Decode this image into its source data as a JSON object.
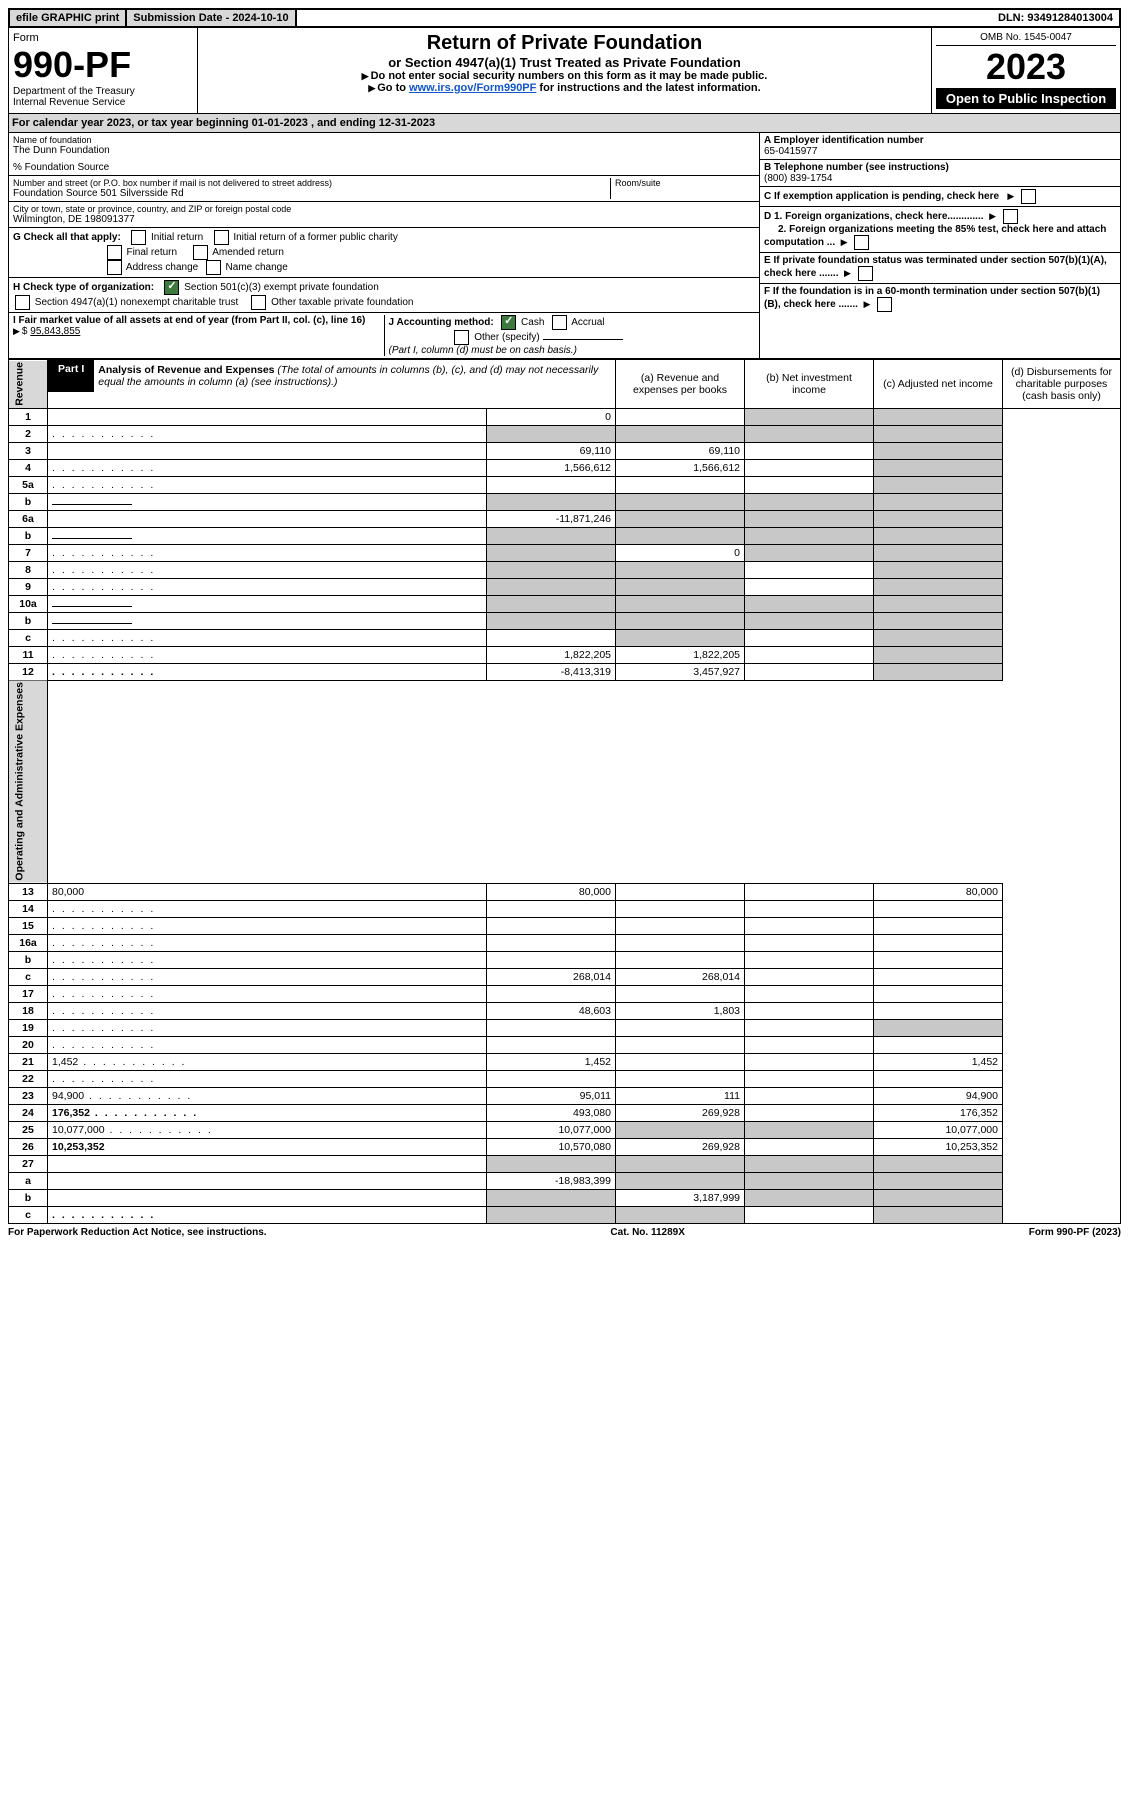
{
  "top": {
    "efile": "efile GRAPHIC print",
    "subdate_label": "Submission Date - 2024-10-10",
    "dln": "DLN: 93491284013004"
  },
  "header": {
    "form_label": "Form",
    "form_num": "990-PF",
    "dept": "Department of the Treasury",
    "irs": "Internal Revenue Service",
    "title": "Return of Private Foundation",
    "subtitle": "or Section 4947(a)(1) Trust Treated as Private Foundation",
    "note1": "Do not enter social security numbers on this form as it may be made public.",
    "note2_pre": "Go to ",
    "note2_link": "www.irs.gov/Form990PF",
    "note2_post": " for instructions and the latest information.",
    "omb": "OMB No. 1545-0047",
    "year": "2023",
    "open": "Open to Public Inspection"
  },
  "calyear": "For calendar year 2023, or tax year beginning 01-01-2023             , and ending 12-31-2023",
  "entity": {
    "name_label": "Name of foundation",
    "name": "The Dunn Foundation",
    "care_of": "% Foundation Source",
    "addr_label": "Number and street (or P.O. box number if mail is not delivered to street address)",
    "addr": "Foundation Source 501 Silversside Rd",
    "room_label": "Room/suite",
    "city_label": "City or town, state or province, country, and ZIP or foreign postal code",
    "city": "Wilmington, DE  198091377",
    "a_label": "A Employer identification number",
    "a_val": "65-0415977",
    "b_label": "B Telephone number (see instructions)",
    "b_val": "(800) 839-1754",
    "c_label": "C If exemption application is pending, check here",
    "d1": "D 1. Foreign organizations, check here.............",
    "d2": "2. Foreign organizations meeting the 85% test, check here and attach computation ...",
    "e_label": "E  If private foundation status was terminated under section 507(b)(1)(A), check here .......",
    "f_label": "F  If the foundation is in a 60-month termination under section 507(b)(1)(B), check here .......",
    "g_label": "G Check all that apply:",
    "g_initial": "Initial return",
    "g_initial_former": "Initial return of a former public charity",
    "g_final": "Final return",
    "g_amended": "Amended return",
    "g_address": "Address change",
    "g_name": "Name change",
    "h_label": "H Check type of organization:",
    "h_501c3": "Section 501(c)(3) exempt private foundation",
    "h_4947": "Section 4947(a)(1) nonexempt charitable trust",
    "h_other_tax": "Other taxable private foundation",
    "i_label": "I Fair market value of all assets at end of year (from Part II, col. (c), line 16)",
    "i_val": "95,843,855",
    "j_label": "J Accounting method:",
    "j_cash": "Cash",
    "j_accrual": "Accrual",
    "j_other": "Other (specify)",
    "j_note": "(Part I, column (d) must be on cash basis.)"
  },
  "part1": {
    "label": "Part I",
    "title": "Analysis of Revenue and Expenses",
    "title_note": "(The total of amounts in columns (b), (c), and (d) may not necessarily equal the amounts in column (a) (see instructions).)",
    "col_a": "(a)   Revenue and expenses per books",
    "col_b": "(b)   Net investment income",
    "col_c": "(c)   Adjusted net income",
    "col_d": "(d)   Disbursements for charitable purposes (cash basis only)"
  },
  "sides": {
    "revenue": "Revenue",
    "expenses": "Operating and Administrative Expenses"
  },
  "rows": [
    {
      "n": "1",
      "d": "",
      "a": "0",
      "b": "",
      "c": "",
      "shade": [
        "c",
        "d"
      ]
    },
    {
      "n": "2",
      "d": "",
      "a": "",
      "b": "",
      "c": "",
      "shade": [
        "a",
        "b",
        "c",
        "d"
      ],
      "dots": true
    },
    {
      "n": "3",
      "d": "",
      "a": "69,110",
      "b": "69,110",
      "c": "",
      "shade": [
        "d"
      ]
    },
    {
      "n": "4",
      "d": "",
      "a": "1,566,612",
      "b": "1,566,612",
      "c": "",
      "shade": [
        "d"
      ],
      "dots": true
    },
    {
      "n": "5a",
      "d": "",
      "a": "",
      "b": "",
      "c": "",
      "shade": [
        "d"
      ],
      "dots": true
    },
    {
      "n": "b",
      "d": "",
      "a": "",
      "b": "",
      "c": "",
      "shade": [
        "a",
        "b",
        "c",
        "d"
      ],
      "inline": true
    },
    {
      "n": "6a",
      "d": "",
      "a": "-11,871,246",
      "b": "",
      "c": "",
      "shade": [
        "b",
        "c",
        "d"
      ]
    },
    {
      "n": "b",
      "d": "",
      "a": "",
      "b": "",
      "c": "",
      "shade": [
        "a",
        "b",
        "c",
        "d"
      ],
      "inline": true
    },
    {
      "n": "7",
      "d": "",
      "a": "",
      "b": "0",
      "c": "",
      "shade": [
        "a",
        "c",
        "d"
      ],
      "dots": true
    },
    {
      "n": "8",
      "d": "",
      "a": "",
      "b": "",
      "c": "",
      "shade": [
        "a",
        "b",
        "d"
      ],
      "dots": true
    },
    {
      "n": "9",
      "d": "",
      "a": "",
      "b": "",
      "c": "",
      "shade": [
        "a",
        "b",
        "d"
      ],
      "dots": true
    },
    {
      "n": "10a",
      "d": "",
      "a": "",
      "b": "",
      "c": "",
      "shade": [
        "a",
        "b",
        "c",
        "d"
      ],
      "inline": true
    },
    {
      "n": "b",
      "d": "",
      "a": "",
      "b": "",
      "c": "",
      "shade": [
        "a",
        "b",
        "c",
        "d"
      ],
      "inline": true,
      "dots": true
    },
    {
      "n": "c",
      "d": "",
      "a": "",
      "b": "",
      "c": "",
      "shade": [
        "b",
        "d"
      ],
      "dots": true
    },
    {
      "n": "11",
      "d": "",
      "a": "1,822,205",
      "b": "1,822,205",
      "c": "",
      "shade": [
        "d"
      ],
      "dots": true
    },
    {
      "n": "12",
      "d": "",
      "a": "-8,413,319",
      "b": "3,457,927",
      "c": "",
      "shade": [
        "d"
      ],
      "bold": true,
      "dots": true
    },
    {
      "n": "13",
      "d": "80,000",
      "a": "80,000",
      "b": "",
      "c": ""
    },
    {
      "n": "14",
      "d": "",
      "a": "",
      "b": "",
      "c": "",
      "dots": true
    },
    {
      "n": "15",
      "d": "",
      "a": "",
      "b": "",
      "c": "",
      "dots": true
    },
    {
      "n": "16a",
      "d": "",
      "a": "",
      "b": "",
      "c": "",
      "dots": true
    },
    {
      "n": "b",
      "d": "",
      "a": "",
      "b": "",
      "c": "",
      "dots": true
    },
    {
      "n": "c",
      "d": "",
      "a": "268,014",
      "b": "268,014",
      "c": "",
      "dots": true
    },
    {
      "n": "17",
      "d": "",
      "a": "",
      "b": "",
      "c": "",
      "dots": true
    },
    {
      "n": "18",
      "d": "",
      "a": "48,603",
      "b": "1,803",
      "c": "",
      "dots": true
    },
    {
      "n": "19",
      "d": "",
      "a": "",
      "b": "",
      "c": "",
      "shade": [
        "d"
      ],
      "dots": true
    },
    {
      "n": "20",
      "d": "",
      "a": "",
      "b": "",
      "c": "",
      "dots": true
    },
    {
      "n": "21",
      "d": "1,452",
      "a": "1,452",
      "b": "",
      "c": "",
      "dots": true
    },
    {
      "n": "22",
      "d": "",
      "a": "",
      "b": "",
      "c": "",
      "dots": true
    },
    {
      "n": "23",
      "d": "94,900",
      "a": "95,011",
      "b": "111",
      "c": "",
      "dots": true
    },
    {
      "n": "24",
      "d": "176,352",
      "a": "493,080",
      "b": "269,928",
      "c": "",
      "bold": true,
      "dots": true
    },
    {
      "n": "25",
      "d": "10,077,000",
      "a": "10,077,000",
      "b": "",
      "c": "",
      "shade": [
        "b",
        "c"
      ],
      "dots": true
    },
    {
      "n": "26",
      "d": "10,253,352",
      "a": "10,570,080",
      "b": "269,928",
      "c": "",
      "bold": true
    },
    {
      "n": "27",
      "d": "",
      "a": "",
      "b": "",
      "c": "",
      "shade": [
        "a",
        "b",
        "c",
        "d"
      ]
    },
    {
      "n": "a",
      "d": "",
      "a": "-18,983,399",
      "b": "",
      "c": "",
      "shade": [
        "b",
        "c",
        "d"
      ],
      "bold": true
    },
    {
      "n": "b",
      "d": "",
      "a": "",
      "b": "3,187,999",
      "c": "",
      "shade": [
        "a",
        "c",
        "d"
      ],
      "bold": true
    },
    {
      "n": "c",
      "d": "",
      "a": "",
      "b": "",
      "c": "",
      "shade": [
        "a",
        "b",
        "d"
      ],
      "bold": true,
      "dots": true
    }
  ],
  "footer": {
    "left": "For Paperwork Reduction Act Notice, see instructions.",
    "mid": "Cat. No. 11289X",
    "right": "Form 990-PF (2023)"
  }
}
